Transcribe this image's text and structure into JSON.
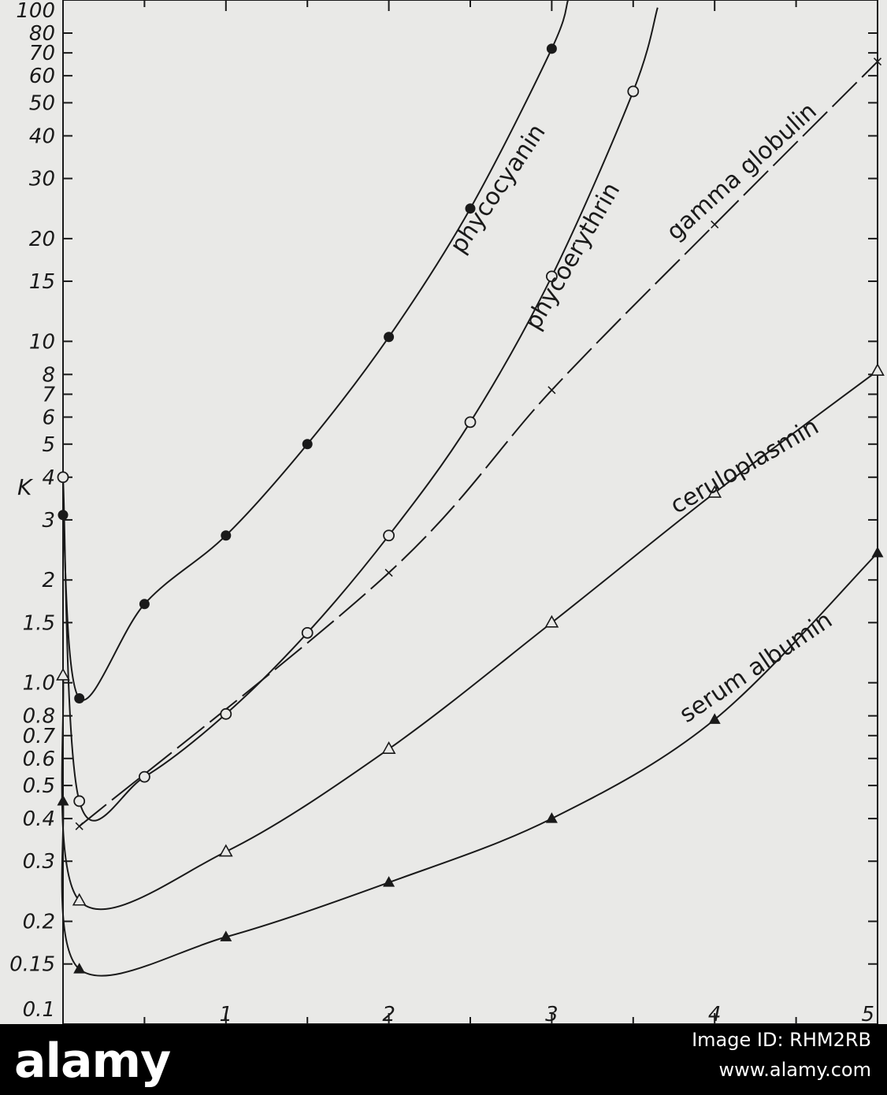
{
  "chart_data": {
    "type": "line",
    "title": "",
    "xlabel": "",
    "ylabel": "K",
    "y_scale": "log",
    "xlim": [
      0,
      5
    ],
    "ylim": [
      0.1,
      100
    ],
    "x_ticks": [
      "1",
      "2",
      "3",
      "4",
      "5"
    ],
    "y_ticks": [
      "0.1",
      "0.15",
      "0.2",
      "0.3",
      "0.4",
      "0.5",
      "0.6",
      "0.7",
      "0.8",
      "1.0",
      "1.5",
      "2",
      "3",
      "4",
      "5",
      "6",
      "7",
      "8",
      "10",
      "15",
      "20",
      "30",
      "40",
      "50",
      "60",
      "70",
      "80",
      "100"
    ],
    "grid": false,
    "legend": "none",
    "series": [
      {
        "name": "phycocyanin",
        "marker": "filled-circle",
        "points": [
          [
            0,
            3.1
          ],
          [
            0.1,
            0.9
          ],
          [
            0.5,
            1.7
          ],
          [
            1,
            2.7
          ],
          [
            1.5,
            5.0
          ],
          [
            2,
            10.3
          ],
          [
            2.5,
            24.5
          ],
          [
            3,
            72
          ]
        ],
        "line_end": [
          3.1,
          100
        ]
      },
      {
        "name": "phycoerythrin",
        "marker": "open-circle",
        "points": [
          [
            0,
            4.0
          ],
          [
            0.1,
            0.45
          ],
          [
            0.5,
            0.53
          ],
          [
            1,
            0.81
          ],
          [
            1.5,
            1.4
          ],
          [
            2,
            2.7
          ],
          [
            2.5,
            5.8
          ],
          [
            3,
            15.5
          ],
          [
            3.5,
            54
          ]
        ],
        "line_end": [
          3.65,
          95
        ]
      },
      {
        "name": "gamma globulin",
        "marker": "x",
        "points": [
          [
            0.1,
            0.38
          ],
          [
            2,
            2.1
          ],
          [
            3,
            7.2
          ],
          [
            4,
            22
          ],
          [
            5,
            66
          ]
        ]
      },
      {
        "name": "ceruloplasmin",
        "marker": "open-triangle",
        "points": [
          [
            0,
            1.05
          ],
          [
            0.1,
            0.23
          ],
          [
            1,
            0.32
          ],
          [
            2,
            0.64
          ],
          [
            3,
            1.5
          ],
          [
            4,
            3.6
          ],
          [
            5,
            8.2
          ]
        ]
      },
      {
        "name": "serum albumin",
        "marker": "filled-triangle",
        "points": [
          [
            0,
            0.45
          ],
          [
            0.1,
            0.145
          ],
          [
            1,
            0.18
          ],
          [
            2,
            0.26
          ],
          [
            3,
            0.4
          ],
          [
            4,
            0.78
          ],
          [
            5,
            2.4
          ]
        ]
      }
    ]
  },
  "watermark": {
    "brand": "alamy",
    "image_id": "Image ID: RHM2RB",
    "url": "www.alamy.com"
  },
  "colors": {
    "background": "#e9e9e7",
    "ink": "#1a1a1a",
    "bar": "#000000"
  }
}
